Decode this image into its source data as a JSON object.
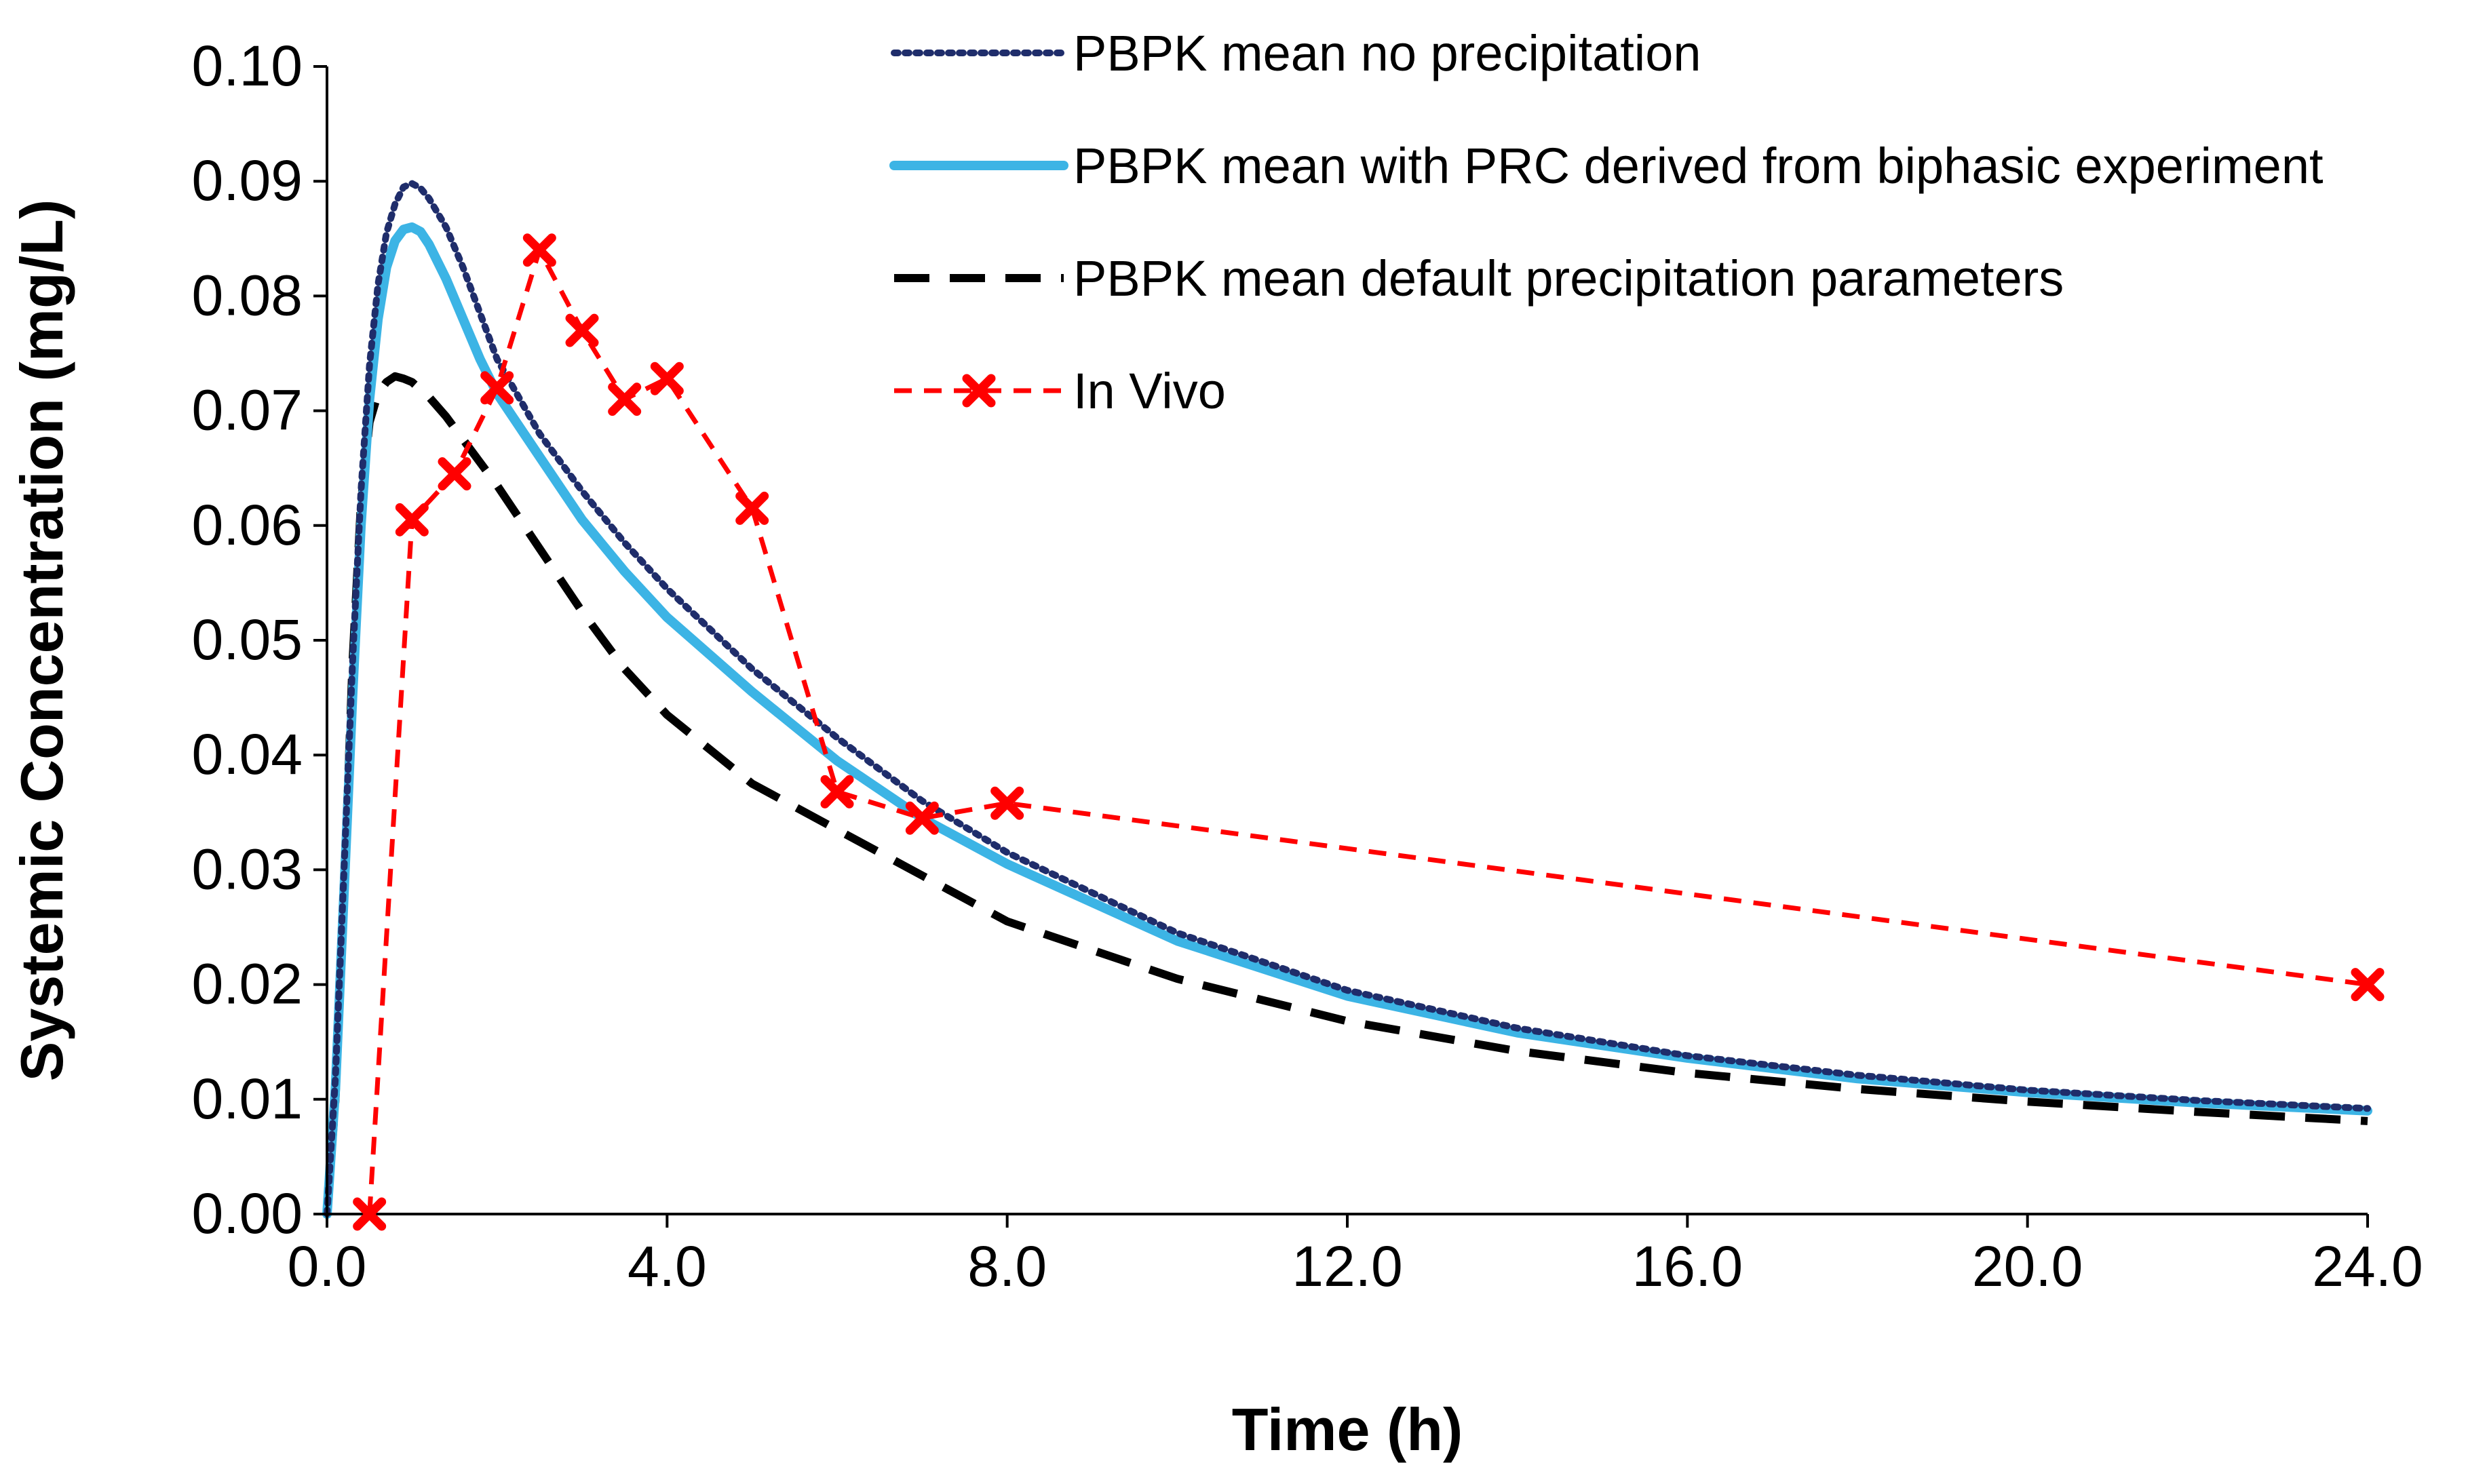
{
  "chart_data": {
    "type": "line",
    "xlabel": "Time (h)",
    "ylabel": "Systemic Concentration (mg/L)",
    "xlim": [
      0,
      24
    ],
    "ylim": [
      0,
      0.1
    ],
    "x_ticks": [
      "0.0",
      "4.0",
      "8.0",
      "12.0",
      "16.0",
      "20.0",
      "24.0"
    ],
    "x_tick_values": [
      0,
      4,
      8,
      12,
      16,
      20,
      24
    ],
    "y_ticks": [
      "0.00",
      "0.01",
      "0.02",
      "0.03",
      "0.04",
      "0.05",
      "0.06",
      "0.07",
      "0.08",
      "0.09",
      "0.10"
    ],
    "y_tick_values": [
      0,
      0.01,
      0.02,
      0.03,
      0.04,
      0.05,
      0.06,
      0.07,
      0.08,
      0.09,
      0.1
    ],
    "grid": false,
    "legend_position": "top-right",
    "series": [
      {
        "name": "PBPK mean no precipitation",
        "style": "dotted",
        "color": "#1f2d6b",
        "x": [
          0,
          0.1,
          0.2,
          0.3,
          0.4,
          0.5,
          0.6,
          0.7,
          0.8,
          0.9,
          1.0,
          1.1,
          1.2,
          1.4,
          1.6,
          1.8,
          2.0,
          2.5,
          3.0,
          3.5,
          4.0,
          5.0,
          6.0,
          7.0,
          8.0,
          10.0,
          12.0,
          14.0,
          16.0,
          18.0,
          20.0,
          22.0,
          24.0
        ],
        "y": [
          0,
          0.012,
          0.03,
          0.048,
          0.063,
          0.074,
          0.081,
          0.0855,
          0.088,
          0.0895,
          0.0898,
          0.0894,
          0.0885,
          0.086,
          0.0825,
          0.0785,
          0.0745,
          0.068,
          0.063,
          0.0585,
          0.0545,
          0.0475,
          0.0415,
          0.036,
          0.0315,
          0.0245,
          0.0195,
          0.0162,
          0.0138,
          0.0121,
          0.0108,
          0.0099,
          0.0092
        ]
      },
      {
        "name": "PBPK mean with PRC derived from biphasic experiment",
        "style": "solid",
        "color": "#3cb4e5",
        "x": [
          0,
          0.1,
          0.2,
          0.3,
          0.4,
          0.5,
          0.6,
          0.7,
          0.8,
          0.9,
          1.0,
          1.1,
          1.2,
          1.4,
          1.6,
          1.8,
          2.0,
          2.5,
          3.0,
          3.5,
          4.0,
          5.0,
          6.0,
          7.0,
          8.0,
          10.0,
          12.0,
          14.0,
          16.0,
          18.0,
          20.0,
          22.0,
          24.0
        ],
        "y": [
          0,
          0.011,
          0.028,
          0.045,
          0.06,
          0.071,
          0.078,
          0.0825,
          0.0848,
          0.0858,
          0.086,
          0.0856,
          0.0845,
          0.0815,
          0.078,
          0.0745,
          0.0715,
          0.066,
          0.0605,
          0.056,
          0.052,
          0.0455,
          0.0395,
          0.0345,
          0.0305,
          0.0238,
          0.019,
          0.0158,
          0.0136,
          0.0118,
          0.0106,
          0.0097,
          0.009
        ]
      },
      {
        "name": "PBPK mean default precipitation parameters",
        "style": "dashed",
        "color": "#000000",
        "x": [
          0,
          0.1,
          0.2,
          0.3,
          0.4,
          0.5,
          0.6,
          0.7,
          0.8,
          0.9,
          1.0,
          1.2,
          1.4,
          1.6,
          1.8,
          2.0,
          2.5,
          3.0,
          3.5,
          4.0,
          5.0,
          6.0,
          7.0,
          8.0,
          10.0,
          12.0,
          14.0,
          16.0,
          18.0,
          20.0,
          22.0,
          24.0
        ],
        "y": [
          0,
          0.01,
          0.028,
          0.048,
          0.062,
          0.069,
          0.0715,
          0.0725,
          0.073,
          0.0728,
          0.0725,
          0.0712,
          0.0695,
          0.0675,
          0.0655,
          0.0635,
          0.058,
          0.0525,
          0.0475,
          0.0435,
          0.0375,
          0.0335,
          0.0295,
          0.0255,
          0.0205,
          0.0168,
          0.0142,
          0.0123,
          0.0109,
          0.0098,
          0.0089,
          0.0081
        ]
      },
      {
        "name": "In Vivo",
        "style": "dashed-markers",
        "color": "#ff0000",
        "x": [
          0.5,
          1.0,
          1.5,
          2.0,
          2.5,
          3.0,
          3.5,
          4.0,
          5.0,
          6.0,
          7.0,
          8.0,
          24.0
        ],
        "y": [
          0.0,
          0.0605,
          0.0645,
          0.072,
          0.084,
          0.077,
          0.071,
          0.0728,
          0.0615,
          0.0368,
          0.0345,
          0.0358,
          0.02
        ]
      }
    ]
  }
}
